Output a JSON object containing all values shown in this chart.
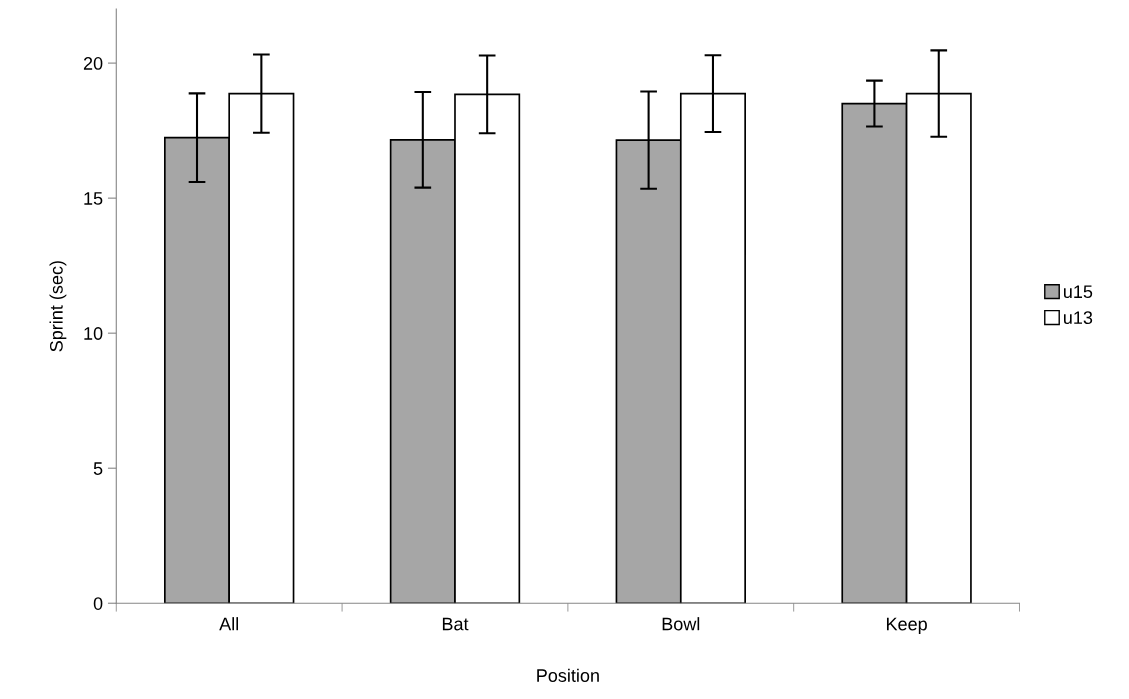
{
  "chart_data": {
    "type": "bar",
    "xlabel": "Position",
    "ylabel": "Sprint (sec)",
    "categories": [
      "All",
      "Bat",
      "Bowl",
      "Keep"
    ],
    "series": [
      {
        "name": "u15",
        "color": "#a6a6a6",
        "values": [
          17.24,
          17.16,
          17.15,
          18.5
        ],
        "errors": [
          1.64,
          1.77,
          1.8,
          0.85
        ]
      },
      {
        "name": "u13",
        "color": "#ffffff",
        "values": [
          18.87,
          18.84,
          18.87,
          18.87
        ],
        "errors": [
          1.45,
          1.44,
          1.42,
          1.6
        ]
      }
    ],
    "ylim": [
      0,
      22
    ],
    "yticks": [
      0,
      5,
      10,
      15,
      20
    ],
    "grid": false,
    "legend": "right"
  }
}
